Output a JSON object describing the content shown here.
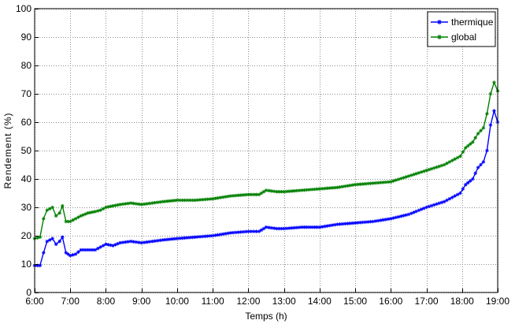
{
  "chart_data": {
    "type": "line",
    "xlabel": "Temps (h)",
    "ylabel": "Rendement (%)",
    "xlim": [
      6,
      19
    ],
    "ylim": [
      0,
      100
    ],
    "x_ticks": [
      6,
      7,
      8,
      9,
      10,
      11,
      12,
      13,
      14,
      15,
      16,
      17,
      18,
      19
    ],
    "x_tick_labels": [
      "6:00",
      "7:00",
      "8:00",
      "9:00",
      "10:00",
      "11:00",
      "12:00",
      "13:00",
      "14:00",
      "15:00",
      "16:00",
      "17:00",
      "18:00",
      "19:00"
    ],
    "y_ticks": [
      0,
      10,
      20,
      30,
      40,
      50,
      60,
      70,
      80,
      90,
      100
    ],
    "y_tick_labels": [
      "0",
      "10",
      "20",
      "30",
      "40",
      "50",
      "60",
      "70",
      "80",
      "90",
      "100"
    ],
    "grid": true,
    "legend_position": "top-right",
    "series": [
      {
        "name": "thermique",
        "color": "#0000ff",
        "marker": "star",
        "points": [
          [
            6.0,
            9.5
          ],
          [
            6.15,
            9.5
          ],
          [
            6.25,
            14
          ],
          [
            6.35,
            18
          ],
          [
            6.5,
            19
          ],
          [
            6.6,
            17
          ],
          [
            6.7,
            18
          ],
          [
            6.78,
            19.5
          ],
          [
            6.88,
            14
          ],
          [
            7.0,
            13
          ],
          [
            7.15,
            13.5
          ],
          [
            7.3,
            15
          ],
          [
            7.5,
            15
          ],
          [
            7.7,
            15
          ],
          [
            7.85,
            16
          ],
          [
            8.0,
            17
          ],
          [
            8.2,
            16.5
          ],
          [
            8.4,
            17.5
          ],
          [
            8.7,
            18
          ],
          [
            9.0,
            17.5
          ],
          [
            9.3,
            18
          ],
          [
            9.6,
            18.5
          ],
          [
            10.0,
            19
          ],
          [
            10.5,
            19.5
          ],
          [
            11.0,
            20
          ],
          [
            11.5,
            21
          ],
          [
            12.0,
            21.5
          ],
          [
            12.3,
            21.5
          ],
          [
            12.5,
            23
          ],
          [
            12.8,
            22.5
          ],
          [
            13.0,
            22.5
          ],
          [
            13.5,
            23
          ],
          [
            14.0,
            23
          ],
          [
            14.5,
            24
          ],
          [
            15.0,
            24.5
          ],
          [
            15.5,
            25
          ],
          [
            16.0,
            26
          ],
          [
            16.5,
            27.5
          ],
          [
            17.0,
            30
          ],
          [
            17.5,
            32
          ],
          [
            17.8,
            34
          ],
          [
            17.95,
            35
          ],
          [
            18.1,
            38
          ],
          [
            18.3,
            40
          ],
          [
            18.45,
            44
          ],
          [
            18.6,
            46
          ],
          [
            18.7,
            50
          ],
          [
            18.8,
            59
          ],
          [
            18.9,
            64
          ],
          [
            19.0,
            60
          ]
        ]
      },
      {
        "name": "global",
        "color": "#008000",
        "marker": "star",
        "points": [
          [
            6.0,
            19
          ],
          [
            6.15,
            19.5
          ],
          [
            6.25,
            26
          ],
          [
            6.35,
            29
          ],
          [
            6.5,
            30
          ],
          [
            6.6,
            27
          ],
          [
            6.7,
            28
          ],
          [
            6.78,
            30.5
          ],
          [
            6.88,
            25
          ],
          [
            7.0,
            25
          ],
          [
            7.15,
            26
          ],
          [
            7.3,
            27
          ],
          [
            7.5,
            28
          ],
          [
            7.7,
            28.5
          ],
          [
            7.85,
            29
          ],
          [
            8.0,
            30
          ],
          [
            8.2,
            30.5
          ],
          [
            8.4,
            31
          ],
          [
            8.7,
            31.5
          ],
          [
            9.0,
            31
          ],
          [
            9.3,
            31.5
          ],
          [
            9.6,
            32
          ],
          [
            10.0,
            32.5
          ],
          [
            10.5,
            32.5
          ],
          [
            11.0,
            33
          ],
          [
            11.5,
            34
          ],
          [
            12.0,
            34.5
          ],
          [
            12.3,
            34.5
          ],
          [
            12.5,
            36
          ],
          [
            12.8,
            35.5
          ],
          [
            13.0,
            35.5
          ],
          [
            13.5,
            36
          ],
          [
            14.0,
            36.5
          ],
          [
            14.5,
            37
          ],
          [
            15.0,
            38
          ],
          [
            15.5,
            38.5
          ],
          [
            16.0,
            39
          ],
          [
            16.5,
            41
          ],
          [
            17.0,
            43
          ],
          [
            17.5,
            45
          ],
          [
            17.8,
            47
          ],
          [
            17.95,
            48
          ],
          [
            18.1,
            51
          ],
          [
            18.3,
            53
          ],
          [
            18.45,
            56
          ],
          [
            18.6,
            58
          ],
          [
            18.7,
            63
          ],
          [
            18.8,
            70
          ],
          [
            18.9,
            74
          ],
          [
            19.0,
            71
          ]
        ]
      }
    ]
  }
}
